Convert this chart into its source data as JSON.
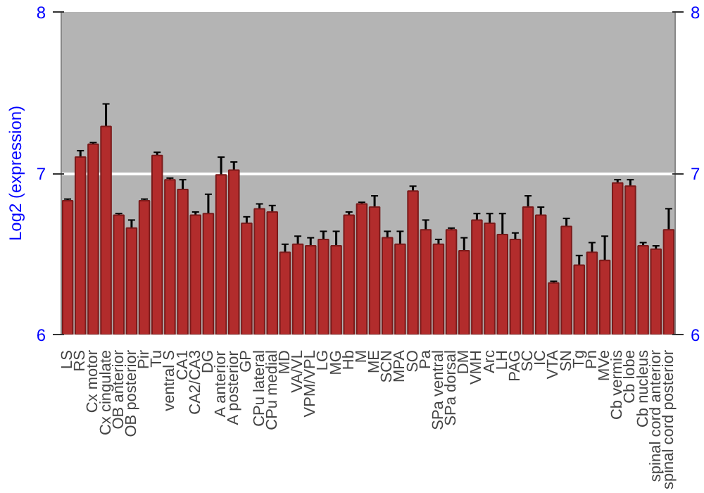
{
  "chart_data": {
    "type": "bar",
    "ylabel": "Log2 (expression)",
    "categories": [
      "LS",
      "RS",
      "Cx motor",
      "Cx cingulate",
      "OB anterior",
      "OB posterior",
      "Pir",
      "Tu",
      "ventral S",
      "CA1",
      "CA2/CA3",
      "DG",
      "A anterior",
      "A posterior",
      "GP",
      "CPu lateral",
      "CPu medial",
      "MD",
      "VA/VL",
      "VPM/VPL",
      "LG",
      "MG",
      "Hb",
      "M",
      "ME",
      "SCN",
      "MPA",
      "SO",
      "Pa",
      "SPa ventral",
      "SPa dorsal",
      "DM",
      "VMH",
      "Arc",
      "LH",
      "PAG",
      "SC",
      "IC",
      "VTA",
      "SN",
      "Tg",
      "Pn",
      "MVe",
      "Cb vermis",
      "Cb lobe",
      "Cb nucleus",
      "spinal cord anterior",
      "spinal cord posterior"
    ],
    "values": [
      6.83,
      7.1,
      7.18,
      7.29,
      6.74,
      6.66,
      6.83,
      7.11,
      6.96,
      6.9,
      6.74,
      6.75,
      6.99,
      7.02,
      6.69,
      6.78,
      6.76,
      6.51,
      6.56,
      6.55,
      6.59,
      6.55,
      6.74,
      6.81,
      6.79,
      6.6,
      6.56,
      6.89,
      6.65,
      6.56,
      6.65,
      6.52,
      6.71,
      6.69,
      6.62,
      6.59,
      6.79,
      6.74,
      6.32,
      6.67,
      6.43,
      6.51,
      6.46,
      6.94,
      6.92,
      6.55,
      6.53,
      6.65
    ],
    "errors": [
      0.01,
      0.04,
      0.01,
      0.14,
      0.01,
      0.05,
      0.01,
      0.02,
      0.01,
      0.06,
      0.02,
      0.12,
      0.11,
      0.05,
      0.04,
      0.03,
      0.04,
      0.05,
      0.05,
      0.05,
      0.05,
      0.09,
      0.02,
      0.01,
      0.07,
      0.04,
      0.08,
      0.03,
      0.06,
      0.03,
      0.01,
      0.08,
      0.04,
      0.06,
      0.13,
      0.04,
      0.07,
      0.05,
      0.01,
      0.05,
      0.06,
      0.06,
      0.15,
      0.02,
      0.04,
      0.02,
      0.02,
      0.13
    ],
    "color": "#b22c2c",
    "ylim": [
      6,
      8
    ],
    "yticks": [
      6,
      7,
      8
    ],
    "y2lim": [
      6,
      8
    ],
    "y2ticks": [
      6,
      7,
      8
    ],
    "grid": "y"
  }
}
